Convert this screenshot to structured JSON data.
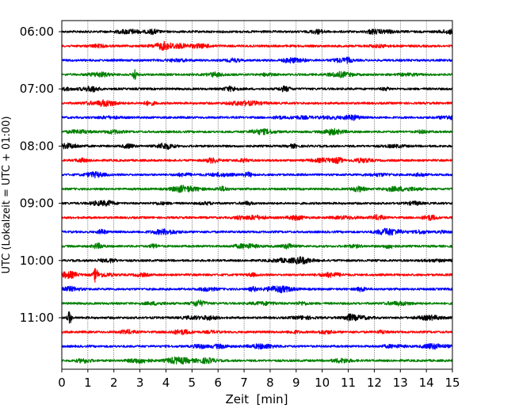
{
  "chart_data": {
    "type": "line",
    "subtype": "helicorder",
    "xlabel": "Zeit  [min]",
    "ylabel": "UTC (Lokalzeit = UTC + 01:00)",
    "xlim": [
      0,
      15
    ],
    "x_ticks": [
      "0",
      "1",
      "2",
      "3",
      "4",
      "5",
      "6",
      "7",
      "8",
      "9",
      "10",
      "11",
      "12",
      "13",
      "14",
      "15"
    ],
    "y_ticks": [
      "06:00",
      "07:00",
      "08:00",
      "09:00",
      "10:00",
      "11:00"
    ],
    "grid": "vertical dotted lines at each minute",
    "trace_interval_min": 15,
    "trace_colors": [
      "#000000",
      "#ff0000",
      "#0000ff",
      "#008000"
    ],
    "traces": [
      {
        "start": "06:00",
        "color": "#000000"
      },
      {
        "start": "06:15",
        "color": "#ff0000"
      },
      {
        "start": "06:30",
        "color": "#0000ff"
      },
      {
        "start": "06:45",
        "color": "#008000",
        "events_min": [
          2.8
        ]
      },
      {
        "start": "07:00",
        "color": "#000000"
      },
      {
        "start": "07:15",
        "color": "#ff0000"
      },
      {
        "start": "07:30",
        "color": "#0000ff"
      },
      {
        "start": "07:45",
        "color": "#008000"
      },
      {
        "start": "08:00",
        "color": "#000000"
      },
      {
        "start": "08:15",
        "color": "#ff0000"
      },
      {
        "start": "08:30",
        "color": "#0000ff"
      },
      {
        "start": "08:45",
        "color": "#008000"
      },
      {
        "start": "09:00",
        "color": "#000000"
      },
      {
        "start": "09:15",
        "color": "#ff0000"
      },
      {
        "start": "09:30",
        "color": "#0000ff"
      },
      {
        "start": "09:45",
        "color": "#008000"
      },
      {
        "start": "10:00",
        "color": "#000000"
      },
      {
        "start": "10:15",
        "color": "#ff0000",
        "events_min": [
          1.3
        ]
      },
      {
        "start": "10:30",
        "color": "#0000ff"
      },
      {
        "start": "10:45",
        "color": "#008000"
      },
      {
        "start": "11:00",
        "color": "#000000",
        "events_min": [
          0.3
        ]
      },
      {
        "start": "11:15",
        "color": "#ff0000"
      },
      {
        "start": "11:30",
        "color": "#0000ff"
      },
      {
        "start": "11:45",
        "color": "#008000"
      }
    ]
  }
}
